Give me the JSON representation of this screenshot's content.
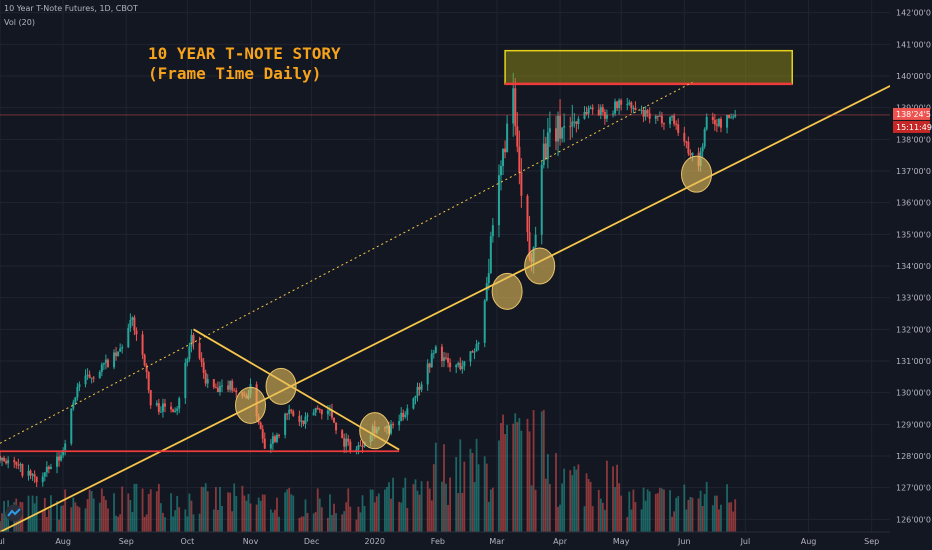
{
  "header": {
    "symbol_line": "10 Year T-Note Futures, 1D, CBOT",
    "volume_line": "Vol (20)"
  },
  "annotation": {
    "title_line1": "10 YEAR T-NOTE STORY",
    "title_line2": "(Frame Time Daily)"
  },
  "price_badges": {
    "last_price": "138'24'5",
    "countdown": "15:11:49"
  },
  "colors": {
    "background": "#131722",
    "grid": "#1f2431",
    "up_candle": "#26a69a",
    "down_candle": "#ef5350",
    "trendline": "#f7c64a",
    "resistance": "#ef3b3b",
    "annotation_text": "#f7a21b",
    "axis_text": "#b2b5be"
  },
  "chart_data": {
    "type": "candlestick",
    "title": "10 YEAR T-NOTE STORY (Frame Time Daily)",
    "instrument": "10 Year T-Note Futures, 1D, CBOT",
    "x_range": [
      "2019-07-01",
      "2020-09-10"
    ],
    "ylim": [
      125.6,
      142.4
    ],
    "y_ticks": [
      {
        "v": 142,
        "t": "142'00'0"
      },
      {
        "v": 141,
        "t": "141'00'0"
      },
      {
        "v": 140,
        "t": "140'00'0"
      },
      {
        "v": 139,
        "t": "139'00'0"
      },
      {
        "v": 138,
        "t": "138'00'0"
      },
      {
        "v": 137,
        "t": "137'00'0"
      },
      {
        "v": 136,
        "t": "136'00'0"
      },
      {
        "v": 135,
        "t": "135'00'0"
      },
      {
        "v": 134,
        "t": "134'00'0"
      },
      {
        "v": 133,
        "t": "133'00'0"
      },
      {
        "v": 132,
        "t": "132'00'0"
      },
      {
        "v": 131,
        "t": "131'00'0"
      },
      {
        "v": 130,
        "t": "130'00'0"
      },
      {
        "v": 129,
        "t": "129'00'0"
      },
      {
        "v": 128,
        "t": "128'00'0"
      },
      {
        "v": 127,
        "t": "127'00'0"
      },
      {
        "v": 126,
        "t": "126'00'0"
      }
    ],
    "x_ticks": [
      {
        "t": "Jul",
        "d": "2019-07-01"
      },
      {
        "t": "Aug",
        "d": "2019-08-01"
      },
      {
        "t": "Sep",
        "d": "2019-09-01"
      },
      {
        "t": "Oct",
        "d": "2019-10-01"
      },
      {
        "t": "Nov",
        "d": "2019-11-01"
      },
      {
        "t": "Dec",
        "d": "2019-12-01"
      },
      {
        "t": "2020",
        "d": "2020-01-01"
      },
      {
        "t": "Feb",
        "d": "2020-02-01"
      },
      {
        "t": "Mar",
        "d": "2020-03-01"
      },
      {
        "t": "Apr",
        "d": "2020-04-01"
      },
      {
        "t": "May",
        "d": "2020-05-01"
      },
      {
        "t": "Jun",
        "d": "2020-06-01"
      },
      {
        "t": "Jul",
        "d": "2020-07-01"
      },
      {
        "t": "Aug",
        "d": "2020-08-01"
      },
      {
        "t": "Sep",
        "d": "2020-09-01"
      }
    ],
    "close_path": [
      [
        "2019-07-01",
        128.0
      ],
      [
        "2019-07-20",
        127.2
      ],
      [
        "2019-07-31",
        128.0
      ],
      [
        "2019-08-08",
        130.2
      ],
      [
        "2019-08-20",
        130.8
      ],
      [
        "2019-08-28",
        131.2
      ],
      [
        "2019-09-04",
        132.3
      ],
      [
        "2019-09-10",
        131.0
      ],
      [
        "2019-09-13",
        129.6
      ],
      [
        "2019-09-20",
        129.5
      ],
      [
        "2019-09-26",
        129.6
      ],
      [
        "2019-10-03",
        131.8
      ],
      [
        "2019-10-10",
        130.4
      ],
      [
        "2019-10-16",
        130.0
      ],
      [
        "2019-10-22",
        130.3
      ],
      [
        "2019-10-28",
        129.8
      ],
      [
        "2019-11-01",
        130.1
      ],
      [
        "2019-11-08",
        128.4
      ],
      [
        "2019-11-13",
        128.6
      ],
      [
        "2019-11-20",
        129.4
      ],
      [
        "2019-11-27",
        129.0
      ],
      [
        "2019-12-03",
        129.5
      ],
      [
        "2019-12-10",
        129.4
      ],
      [
        "2019-12-16",
        128.5
      ],
      [
        "2019-12-23",
        128.2
      ],
      [
        "2019-12-31",
        128.9
      ],
      [
        "2020-01-08",
        128.8
      ],
      [
        "2020-01-14",
        129.2
      ],
      [
        "2020-01-22",
        130.1
      ],
      [
        "2020-01-31",
        131.4
      ],
      [
        "2020-02-07",
        130.8
      ],
      [
        "2020-02-14",
        130.9
      ],
      [
        "2020-02-21",
        131.6
      ],
      [
        "2020-02-27",
        134.5
      ],
      [
        "2020-03-05",
        138.0
      ],
      [
        "2020-03-09",
        139.2
      ],
      [
        "2020-03-13",
        136.0
      ],
      [
        "2020-03-18",
        133.9
      ],
      [
        "2020-03-23",
        137.6
      ],
      [
        "2020-03-31",
        138.3
      ],
      [
        "2020-04-08",
        138.6
      ],
      [
        "2020-04-16",
        139.0
      ],
      [
        "2020-04-24",
        138.8
      ],
      [
        "2020-05-01",
        139.2
      ],
      [
        "2020-05-08",
        138.9
      ],
      [
        "2020-05-18",
        138.6
      ],
      [
        "2020-05-26",
        138.7
      ],
      [
        "2020-06-02",
        137.8
      ],
      [
        "2020-06-08",
        137.2
      ],
      [
        "2020-06-12",
        138.6
      ],
      [
        "2020-06-19",
        138.5
      ],
      [
        "2020-06-26",
        138.8
      ]
    ],
    "volume_level_by_month": [
      0.22,
      0.26,
      0.3,
      0.28,
      0.26,
      0.25,
      0.32,
      0.55,
      0.72,
      0.45,
      0.28,
      0.3,
      0.16
    ],
    "trendlines": [
      {
        "name": "rising support",
        "from": [
          "2019-07-01",
          125.6
        ],
        "to": [
          "2020-09-12",
          139.75
        ],
        "style": "solid"
      },
      {
        "name": "extended channel",
        "from": [
          "2019-07-01",
          128.4
        ],
        "to": [
          "2020-06-05",
          139.8
        ],
        "style": "dotted"
      },
      {
        "name": "descending triangle top",
        "from": [
          "2019-10-04",
          132.0
        ],
        "to": [
          "2020-01-13",
          128.2
        ],
        "style": "solid"
      },
      {
        "name": "triangle base",
        "from": [
          "2019-07-01",
          128.15
        ],
        "to": [
          "2020-01-13",
          128.15
        ],
        "style": "solid"
      }
    ],
    "resistance_zone": {
      "from": "2020-03-05",
      "to": "2020-07-24",
      "low": 139.75,
      "high": 140.8
    },
    "highlighted_touches": [
      {
        "date": "2019-11-01",
        "value": 129.6
      },
      {
        "date": "2019-11-16",
        "value": 130.2
      },
      {
        "date": "2020-01-01",
        "value": 128.8
      },
      {
        "date": "2020-03-06",
        "value": 133.2
      },
      {
        "date": "2020-03-22",
        "value": 134.0
      },
      {
        "date": "2020-06-07",
        "value": 136.9
      }
    ],
    "last_price": 138.77,
    "grid": true
  }
}
